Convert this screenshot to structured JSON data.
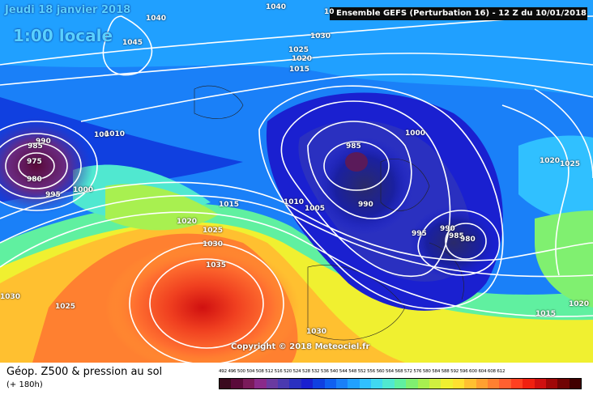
{
  "header": {
    "date_text": "Jeudi 18 janvier 2018",
    "time_text": "1:00 locale",
    "model_label": "Ensemble GEFS  (Perturbation 16)  -  12 Z du 10/01/2018"
  },
  "copyright": "Copyright © 2018 Meteociel.fr",
  "isobars": [
    {
      "id": "i1040a",
      "text": "1040"
    },
    {
      "id": "i1040b",
      "text": "1040"
    },
    {
      "id": "i10",
      "text": "10"
    },
    {
      "id": "i1045",
      "text": "1045"
    },
    {
      "id": "i1030a",
      "text": "1030"
    },
    {
      "id": "i1025a",
      "text": "1025"
    },
    {
      "id": "i1020a",
      "text": "1020"
    },
    {
      "id": "i1015a",
      "text": "1015"
    },
    {
      "id": "i990a",
      "text": "990"
    },
    {
      "id": "i985a",
      "text": "985"
    },
    {
      "id": "i975",
      "text": "975"
    },
    {
      "id": "i980a",
      "text": "980"
    },
    {
      "id": "i995a",
      "text": "995"
    },
    {
      "id": "i1000a",
      "text": "1000"
    },
    {
      "id": "i1005a",
      "text": "100"
    },
    {
      "id": "i1010a",
      "text": "1010"
    },
    {
      "id": "i1015b",
      "text": "1015"
    },
    {
      "id": "i1020b",
      "text": "1020"
    },
    {
      "id": "i1025b",
      "text": "1025"
    },
    {
      "id": "i1030b",
      "text": "1030"
    },
    {
      "id": "i1035",
      "text": "1035"
    },
    {
      "id": "i1010b",
      "text": "1010"
    },
    {
      "id": "i1005b",
      "text": "1005"
    },
    {
      "id": "i990b",
      "text": "990"
    },
    {
      "id": "i985b",
      "text": "985"
    },
    {
      "id": "i1000b",
      "text": "1000"
    },
    {
      "id": "i995b",
      "text": "995"
    },
    {
      "id": "i990c",
      "text": "990"
    },
    {
      "id": "i985c",
      "text": "985"
    },
    {
      "id": "i980b",
      "text": "980"
    },
    {
      "id": "i1020c",
      "text": "1020"
    },
    {
      "id": "i1025c",
      "text": "1025"
    },
    {
      "id": "i1030c",
      "text": "1030"
    },
    {
      "id": "i1025d",
      "text": "1025"
    },
    {
      "id": "i1030d",
      "text": "1030"
    },
    {
      "id": "i1015c",
      "text": "1015"
    },
    {
      "id": "i1020d",
      "text": "1020"
    }
  ],
  "legend": {
    "title": "Géop. Z500 & pression au sol",
    "subtitle": "(+ 180h)",
    "scale_values": [
      "492",
      "496",
      "500",
      "504",
      "508",
      "512",
      "516",
      "520",
      "524",
      "528",
      "532",
      "536",
      "540",
      "544",
      "548",
      "552",
      "556",
      "560",
      "564",
      "568",
      "572",
      "576",
      "580",
      "584",
      "588",
      "592",
      "596",
      "600",
      "604",
      "608",
      "612"
    ],
    "scale_colors": [
      "#3a0a1e",
      "#5a0a3a",
      "#7a1a5a",
      "#8a2a8a",
      "#6a3aa0",
      "#4a3ab0",
      "#2a30c0",
      "#1a20d0",
      "#1040e0",
      "#1060f0",
      "#1a80f8",
      "#20a0ff",
      "#30c0ff",
      "#40d8f0",
      "#50e8d0",
      "#60f0a0",
      "#80f070",
      "#a8f050",
      "#d0f040",
      "#f0f030",
      "#ffe030",
      "#ffc030",
      "#ffa030",
      "#ff8030",
      "#ff6030",
      "#ff4020",
      "#f02010",
      "#d01010",
      "#a00808",
      "#700404",
      "#400000"
    ]
  },
  "colors": {
    "header_bg": "#0a0a0a",
    "title_cyan": "#5ad0ff",
    "isobar": "#ffffff"
  }
}
